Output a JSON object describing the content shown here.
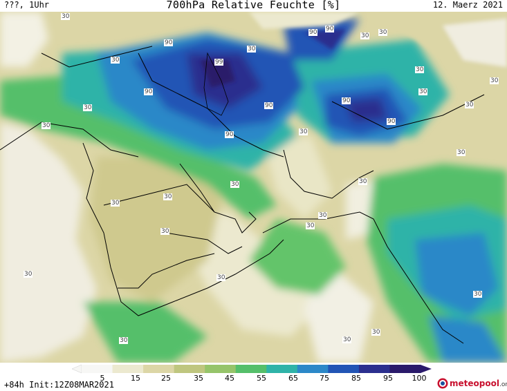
{
  "header": {
    "left_text": "???, 1Uhr",
    "title": "700hPa Relative Feuchte [%]",
    "date": "12. Maerz 2021"
  },
  "footer": {
    "run_info": "+84h Init:12Z08MAR2021",
    "logo_text": "meteopool",
    "logo_suffix": ".org"
  },
  "colorbar": {
    "ticks": [
      "5",
      "15",
      "25",
      "35",
      "45",
      "55",
      "65",
      "75",
      "85",
      "95",
      "100"
    ],
    "colors": [
      "#f7f7f5",
      "#ece9cf",
      "#dcd6a6",
      "#bfc67f",
      "#96c46a",
      "#55bf6a",
      "#2fb3a8",
      "#2c88c8",
      "#2255b5",
      "#2b2f8e",
      "#2a1a6b"
    ]
  },
  "map": {
    "contour_labels": [
      "30",
      "90",
      "99",
      "30",
      "90",
      "30",
      "30",
      "90",
      "90",
      "30",
      "90",
      "90",
      "30",
      "30",
      "90",
      "30",
      "90",
      "30",
      "30",
      "30",
      "30",
      "30",
      "30",
      "30",
      "30",
      "30",
      "30",
      "30",
      "30",
      "30",
      "30",
      "30",
      "30",
      "30",
      "30"
    ]
  }
}
